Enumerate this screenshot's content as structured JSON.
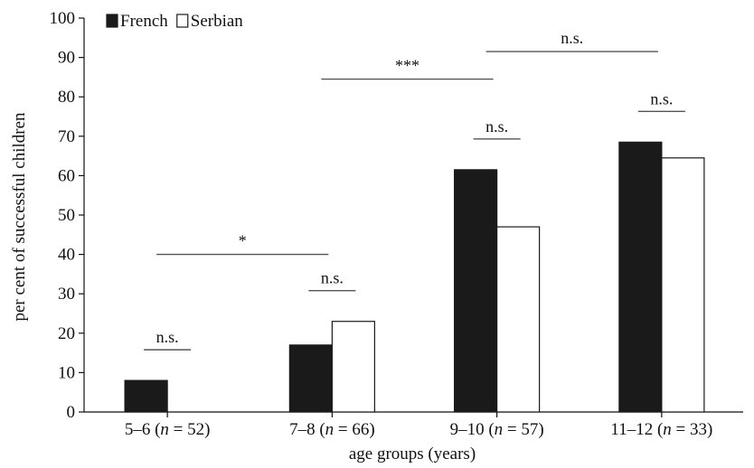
{
  "chart_data": {
    "type": "bar",
    "title": "",
    "xlabel": "age groups (years)",
    "ylabel": "per cent of successful children",
    "ylim": [
      0,
      100
    ],
    "yticks": [
      "0",
      "10",
      "20",
      "30",
      "40",
      "50",
      "60",
      "70",
      "80",
      "90",
      "100"
    ],
    "categories": [
      {
        "prefix": "5–6 (",
        "n": "n",
        "suffix": " = 52)"
      },
      {
        "prefix": "7–8 (",
        "n": "n",
        "suffix": " = 66)"
      },
      {
        "prefix": "9–10 (",
        "n": "n",
        "suffix": " = 57)"
      },
      {
        "prefix": "11–12 (",
        "n": "n",
        "suffix": " = 33)"
      }
    ],
    "series": [
      {
        "name": "French",
        "values": [
          8,
          17,
          61.5,
          68.5
        ],
        "color": "#1a1a1a"
      },
      {
        "name": "Serbian",
        "values": [
          0,
          23,
          47,
          64.5
        ],
        "color": "#ffffff"
      }
    ],
    "legend_position": "top-left",
    "grid": false,
    "within_group_comparisons": [
      {
        "group": 0,
        "label": "n.s."
      },
      {
        "group": 1,
        "label": "n.s."
      },
      {
        "group": 2,
        "label": "n.s."
      },
      {
        "group": 3,
        "label": "n.s."
      }
    ],
    "between_group_comparisons": [
      {
        "from": 0,
        "to": 1,
        "label": "*"
      },
      {
        "from": 1,
        "to": 2,
        "label": "***"
      },
      {
        "from": 2,
        "to": 3,
        "label": "n.s."
      }
    ]
  }
}
